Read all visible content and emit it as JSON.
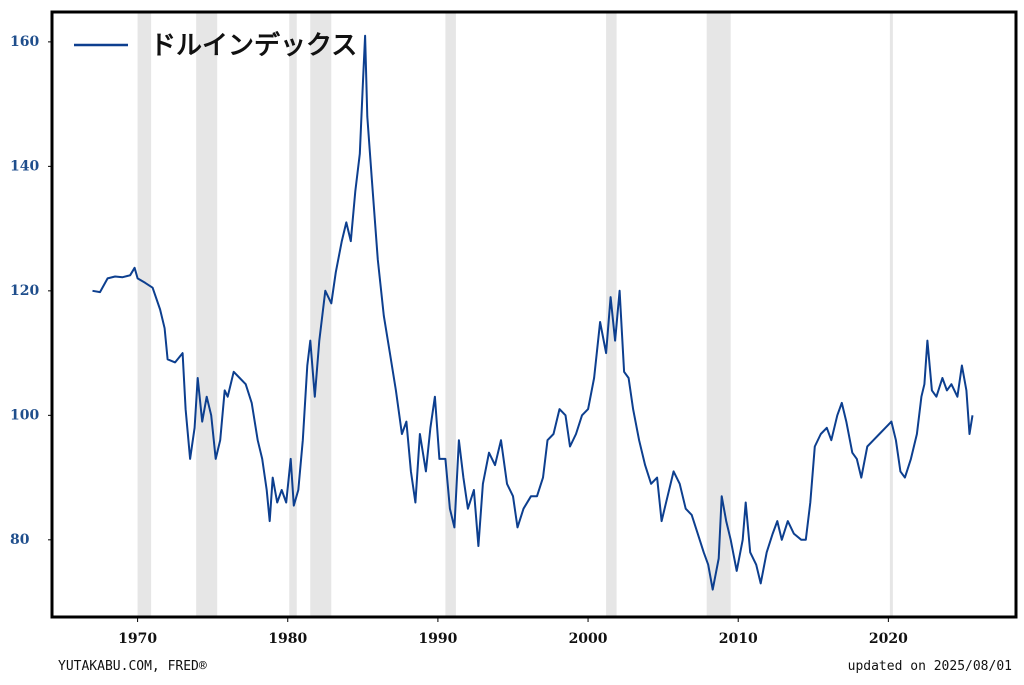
{
  "chart_data": {
    "type": "line",
    "legend_label": "ドルインデックス",
    "source": "YUTAKABU.COM, FRED®",
    "updated": "updated on 2025/08/01",
    "xlim": [
      1964.3,
      2028.5
    ],
    "xticks": [
      1970,
      1980,
      1990,
      2000,
      2010,
      2020
    ],
    "ylim": [
      67.6,
      164.8
    ],
    "yticks": [
      80,
      100,
      120,
      140,
      160
    ],
    "recessions": [
      [
        1970.0,
        1970.9
      ],
      [
        1973.9,
        1975.3
      ],
      [
        1980.1,
        1980.6
      ],
      [
        1981.5,
        1982.9
      ],
      [
        1990.5,
        1991.2
      ],
      [
        2001.2,
        2001.9
      ],
      [
        2007.9,
        2009.5
      ],
      [
        2020.1,
        2020.3
      ]
    ],
    "series": [
      {
        "name": "ドルインデックス",
        "color": "#0d3f8f",
        "x": [
          1967.0,
          1967.5,
          1968.0,
          1968.5,
          1969.0,
          1969.5,
          1969.8,
          1970.0,
          1970.5,
          1971.0,
          1971.5,
          1971.8,
          1972.0,
          1972.5,
          1973.0,
          1973.2,
          1973.5,
          1973.8,
          1974.0,
          1974.3,
          1974.6,
          1974.9,
          1975.2,
          1975.5,
          1975.8,
          1976.0,
          1976.4,
          1976.8,
          1977.2,
          1977.6,
          1978.0,
          1978.3,
          1978.6,
          1978.8,
          1979.0,
          1979.3,
          1979.6,
          1979.9,
          1980.2,
          1980.4,
          1980.7,
          1981.0,
          1981.3,
          1981.5,
          1981.8,
          1982.1,
          1982.5,
          1982.9,
          1983.2,
          1983.6,
          1983.9,
          1984.2,
          1984.5,
          1984.8,
          1985.0,
          1985.15,
          1985.3,
          1985.6,
          1986.0,
          1986.4,
          1986.8,
          1987.2,
          1987.6,
          1987.9,
          1988.2,
          1988.5,
          1988.8,
          1989.2,
          1989.5,
          1989.8,
          1990.1,
          1990.5,
          1990.8,
          1991.1,
          1991.4,
          1991.7,
          1992.0,
          1992.4,
          1992.7,
          1993.0,
          1993.4,
          1993.8,
          1994.2,
          1994.6,
          1995.0,
          1995.3,
          1995.7,
          1996.2,
          1996.6,
          1997.0,
          1997.3,
          1997.7,
          1998.1,
          1998.5,
          1998.8,
          1999.2,
          1999.6,
          2000.0,
          2000.4,
          2000.8,
          2001.2,
          2001.5,
          2001.8,
          2002.1,
          2002.4,
          2002.7,
          2003.0,
          2003.4,
          2003.8,
          2004.2,
          2004.6,
          2004.9,
          2005.3,
          2005.7,
          2006.1,
          2006.5,
          2006.9,
          2007.3,
          2007.7,
          2008.0,
          2008.3,
          2008.7,
          2008.9,
          2009.2,
          2009.5,
          2009.9,
          2010.3,
          2010.5,
          2010.8,
          2011.2,
          2011.5,
          2011.9,
          2012.3,
          2012.6,
          2012.9,
          2013.3,
          2013.7,
          2014.2,
          2014.5,
          2014.8,
          2015.1,
          2015.5,
          2015.9,
          2016.2,
          2016.6,
          2016.9,
          2017.2,
          2017.6,
          2017.9,
          2018.2,
          2018.6,
          2019.0,
          2019.4,
          2019.8,
          2020.2,
          2020.5,
          2020.8,
          2021.1,
          2021.5,
          2021.9,
          2022.2,
          2022.4,
          2022.6,
          2022.9,
          2023.2,
          2023.6,
          2023.9,
          2024.2,
          2024.6,
          2024.9,
          2025.2,
          2025.4,
          2025.6
        ],
        "values": [
          120,
          119.8,
          122,
          122.3,
          122.2,
          122.5,
          123.7,
          122,
          121.3,
          120.5,
          117,
          114,
          109,
          108.5,
          110,
          101,
          93,
          98,
          106,
          99,
          103,
          100,
          93,
          96,
          104,
          103,
          107,
          106,
          105,
          102,
          96,
          93,
          88,
          83,
          90,
          86,
          88,
          86,
          93,
          85.5,
          88,
          96,
          108,
          112,
          103,
          112,
          120,
          118,
          123,
          128,
          131,
          128,
          136,
          142,
          153,
          161,
          148,
          138,
          125,
          116,
          110,
          104,
          97,
          99,
          91,
          86,
          97,
          91,
          98,
          103,
          93,
          93,
          85,
          82,
          96,
          90,
          85,
          88,
          79,
          89,
          94,
          92,
          96,
          89,
          87,
          82,
          85,
          87,
          87,
          90,
          96,
          97,
          101,
          100,
          95,
          97,
          100,
          101,
          106,
          115,
          110,
          119,
          112,
          120,
          107,
          106,
          101,
          96,
          92,
          89,
          90,
          83,
          87,
          91,
          89,
          85,
          84,
          81,
          78,
          76,
          72,
          77,
          87,
          83,
          80,
          75,
          80,
          86,
          78,
          76,
          73,
          78,
          81,
          83,
          80,
          83,
          81,
          80,
          80,
          86,
          95,
          97,
          98,
          96,
          100,
          102,
          99,
          94,
          93,
          90,
          95,
          96,
          97,
          98,
          99,
          96,
          91,
          90,
          93,
          97,
          103,
          105,
          112,
          104,
          103,
          106,
          104,
          105,
          103,
          108,
          104,
          97,
          100
        ]
      }
    ]
  }
}
